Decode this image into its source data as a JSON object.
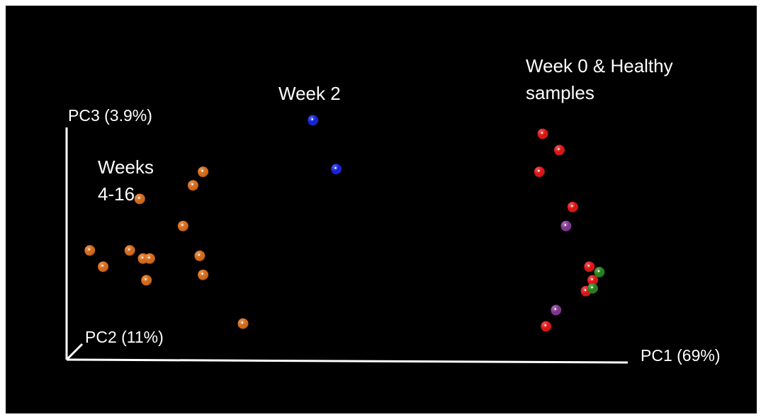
{
  "chart_data": {
    "type": "scatter",
    "subtype": "3d-pca",
    "axes": {
      "x_label": "PC1 (69%)",
      "y_label": "PC3 (3.9%)",
      "z_label": "PC2 (11%)"
    },
    "grid": false,
    "legend": "none",
    "annotations": {
      "weeks_4_16": [
        "Weeks",
        "4-16"
      ],
      "week_2": [
        "Week 2"
      ],
      "week_0_healthy": [
        "Week 0 & Healthy",
        "samples"
      ]
    },
    "colors": {
      "weeks_4_16": "#d4640f",
      "week_2": "#0a18d6",
      "week_0": "#dd0a0a",
      "healthy_purple": "#7a2d8c",
      "healthy_green": "#1e7a10",
      "axis": "#ffffff",
      "background": "#000000"
    },
    "series": [
      {
        "group": "weeks_4_16",
        "color": "#d4640f",
        "points": [
          [
            0.04,
            0.28
          ],
          [
            0.19,
            0.47
          ],
          [
            0.16,
            0.28
          ],
          [
            0.32,
            0.37
          ],
          [
            0.08,
            0.22
          ],
          [
            0.2,
            0.25
          ],
          [
            0.22,
            0.25
          ],
          [
            0.21,
            0.17
          ],
          [
            0.35,
            0.52
          ],
          [
            0.38,
            0.57
          ],
          [
            0.37,
            0.26
          ],
          [
            0.38,
            0.19
          ],
          [
            0.5,
            0.01
          ]
        ]
      },
      {
        "group": "week_2",
        "color": "#0a18d6",
        "points": [
          [
            0.71,
            0.76
          ],
          [
            0.78,
            0.58
          ]
        ]
      },
      {
        "group": "week_0",
        "color": "#dd0a0a",
        "points": [
          [
            1.4,
            0.71
          ],
          [
            1.45,
            0.65
          ],
          [
            1.39,
            0.57
          ],
          [
            1.49,
            0.44
          ],
          [
            1.54,
            0.22
          ],
          [
            1.55,
            0.17
          ],
          [
            1.53,
            0.13
          ],
          [
            1.41,
            0.0
          ]
        ]
      },
      {
        "group": "healthy_purple",
        "color": "#7a2d8c",
        "points": [
          [
            1.47,
            0.37
          ],
          [
            1.44,
            0.06
          ]
        ]
      },
      {
        "group": "healthy_green",
        "color": "#1e7a10",
        "points": [
          [
            1.57,
            0.2
          ],
          [
            1.55,
            0.14
          ]
        ]
      }
    ]
  }
}
